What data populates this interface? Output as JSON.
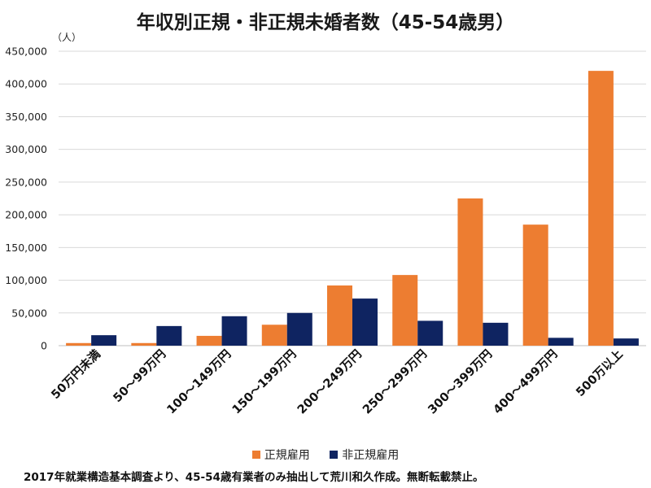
{
  "title": "年収別正規・非正規未婚者数（45-54歳男）",
  "footnote": "2017年就業構造基本調査より、45-54歳有業者のみ抽出して荒川和久作成。無断転載禁止。",
  "colors": {
    "regular": "#ED7D31",
    "nonregular": "#0F2461",
    "grid": "#D9D9D9"
  },
  "chart_data": {
    "type": "bar",
    "title": "年収別正規・非正規未婚者数（45-54歳男）",
    "ylabel": "（人）",
    "xlabel": "",
    "ylim": [
      0,
      450000
    ],
    "yticks": [
      0,
      50000,
      100000,
      150000,
      200000,
      250000,
      300000,
      350000,
      400000,
      450000
    ],
    "ytick_labels": [
      "0",
      "50,000",
      "100,000",
      "150,000",
      "200,000",
      "250,000",
      "300,000",
      "350,000",
      "400,000",
      "450,000"
    ],
    "grid": true,
    "legend_position": "bottom",
    "categories": [
      "50万円未満",
      "50～99万円",
      "100～149万円",
      "150～199万円",
      "200～249万円",
      "250～299万円",
      "300～399万円",
      "400～499万円",
      "500万以上"
    ],
    "series": [
      {
        "name": "正規雇用",
        "values": [
          4000,
          4000,
          15000,
          32000,
          92000,
          108000,
          225000,
          185000,
          420000
        ]
      },
      {
        "name": "非正規雇用",
        "values": [
          16000,
          30000,
          45000,
          50000,
          72000,
          38000,
          35000,
          12000,
          11000
        ]
      }
    ]
  }
}
